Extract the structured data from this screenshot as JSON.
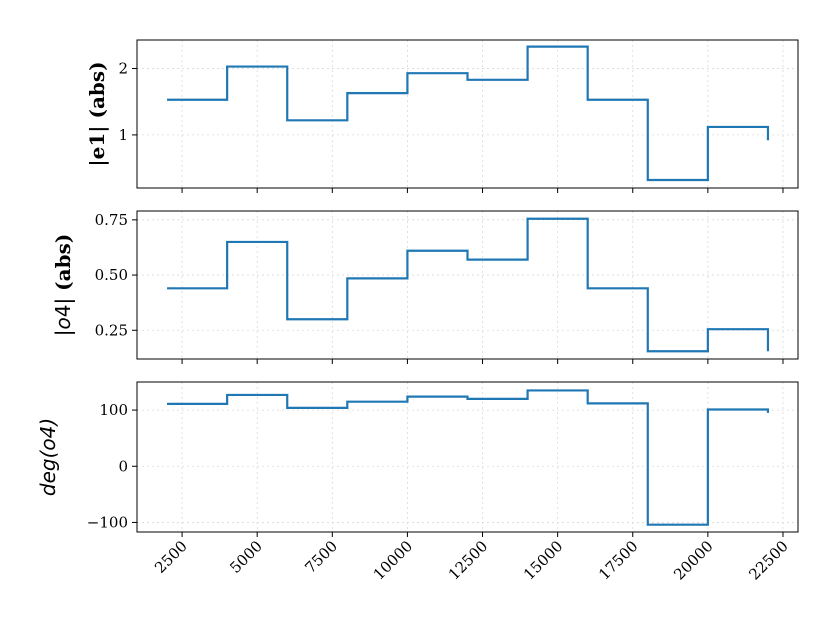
{
  "chart_data": [
    {
      "type": "line",
      "drawstyle": "steps-post",
      "ylabel": "|e1| (abs)",
      "ylabel_style": "bold-serif",
      "yticks": [
        1,
        2
      ],
      "ylim": [
        0.2,
        2.43
      ],
      "xlim": [
        1000,
        23000
      ],
      "grid": true,
      "x": [
        2000,
        4000,
        6000,
        8000,
        10000,
        12000,
        14000,
        16000,
        18000,
        20000,
        22000
      ],
      "y": [
        1.53,
        2.03,
        1.22,
        1.63,
        1.93,
        1.83,
        2.33,
        1.53,
        0.32,
        1.12,
        0.92
      ],
      "color": "#1f77b4"
    },
    {
      "type": "line",
      "drawstyle": "steps-post",
      "ylabel": "|o4| (abs)",
      "ylabel_style": "mixed-math",
      "yticks": [
        0.25,
        0.5,
        0.75
      ],
      "ytick_labels": [
        "0.25",
        "0.50",
        "0.75"
      ],
      "ylim": [
        0.12,
        0.79
      ],
      "xlim": [
        1000,
        23000
      ],
      "grid": true,
      "x": [
        2000,
        4000,
        6000,
        8000,
        10000,
        12000,
        14000,
        16000,
        18000,
        20000,
        22000
      ],
      "y": [
        0.44,
        0.65,
        0.3,
        0.485,
        0.61,
        0.57,
        0.755,
        0.44,
        0.155,
        0.255,
        0.155
      ],
      "color": "#1f77b4"
    },
    {
      "type": "line",
      "drawstyle": "steps-post",
      "ylabel": "deg(o4)",
      "ylabel_style": "math-italic",
      "yticks": [
        -100,
        0,
        100
      ],
      "ytick_labels": [
        "−100",
        "0",
        "100"
      ],
      "ylim": [
        -117,
        150
      ],
      "xlim": [
        1000,
        23000
      ],
      "grid": true,
      "x": [
        2000,
        4000,
        6000,
        8000,
        10000,
        12000,
        14000,
        16000,
        18000,
        20000,
        22000
      ],
      "y": [
        111,
        127,
        104,
        115,
        124,
        120,
        135,
        112,
        -104,
        101,
        95
      ],
      "color": "#1f77b4",
      "xticks": [
        2500,
        5000,
        7500,
        10000,
        12500,
        15000,
        17500,
        20000,
        22500
      ],
      "xtick_labels": [
        "2500",
        "5000",
        "7500",
        "10000",
        "12500",
        "15000",
        "17500",
        "20000",
        "22500"
      ]
    }
  ]
}
